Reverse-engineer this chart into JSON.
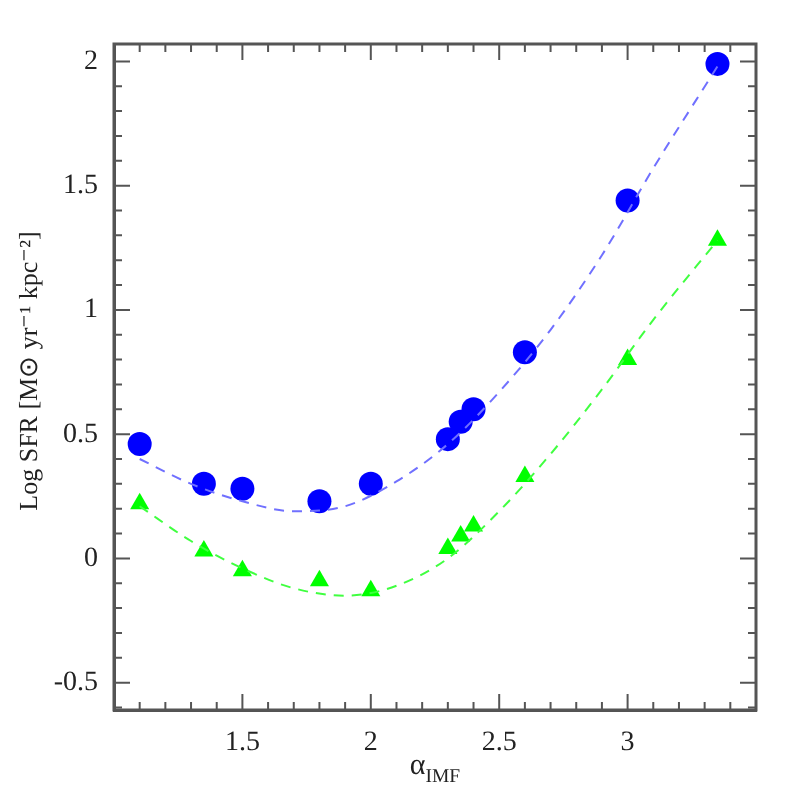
{
  "chart_data": {
    "type": "scatter",
    "xlabel": "α$_{IMF}$",
    "ylabel": "Log SFR [M⊙ yr⁻¹ kpc⁻²]",
    "xlim": [
      1.0,
      3.5
    ],
    "ylim": [
      -0.61,
      2.07
    ],
    "xticks": [
      {
        "value": 1.1,
        "label": null
      },
      {
        "value": 1.2,
        "label": null
      },
      {
        "value": 1.3,
        "label": null
      },
      {
        "value": 1.4,
        "label": null
      },
      1.5,
      {
        "value": 1.6,
        "label": null
      },
      {
        "value": 1.7,
        "label": null
      },
      {
        "value": 1.8,
        "label": null
      },
      {
        "value": 1.9,
        "label": null
      },
      2,
      {
        "value": 2.1,
        "label": null
      },
      {
        "value": 2.2,
        "label": null
      },
      {
        "value": 2.3,
        "label": null
      },
      {
        "value": 2.4,
        "label": null
      },
      2.5,
      {
        "value": 2.6,
        "label": null
      },
      {
        "value": 2.7,
        "label": null
      },
      {
        "value": 2.8,
        "label": null
      },
      {
        "value": 2.9,
        "label": null
      },
      3,
      {
        "value": 3.1,
        "label": null
      },
      {
        "value": 3.2,
        "label": null
      },
      {
        "value": 3.3,
        "label": null
      },
      {
        "value": 3.4,
        "label": null
      }
    ],
    "yticks": [
      {
        "value": -0.6,
        "label": null
      },
      -0.5,
      {
        "value": -0.4,
        "label": null
      },
      {
        "value": -0.3,
        "label": null
      },
      {
        "value": -0.2,
        "label": null
      },
      {
        "value": -0.1,
        "label": null
      },
      0,
      {
        "value": 0.1,
        "label": null
      },
      {
        "value": 0.2,
        "label": null
      },
      {
        "value": 0.3,
        "label": null
      },
      {
        "value": 0.4,
        "label": null
      },
      0.5,
      {
        "value": 0.6,
        "label": null
      },
      {
        "value": 0.7,
        "label": null
      },
      {
        "value": 0.8,
        "label": null
      },
      {
        "value": 0.9,
        "label": null
      },
      1,
      {
        "value": 1.1,
        "label": null
      },
      {
        "value": 1.2,
        "label": null
      },
      {
        "value": 1.3,
        "label": null
      },
      {
        "value": 1.4,
        "label": null
      },
      1.5,
      {
        "value": 1.6,
        "label": null
      },
      {
        "value": 1.7,
        "label": null
      },
      {
        "value": 1.8,
        "label": null
      },
      {
        "value": 1.9,
        "label": null
      },
      2
    ],
    "grid": false,
    "legend": false,
    "series": [
      {
        "type": "line",
        "color": "#7070ff",
        "line_style": "dashed",
        "marker": "none",
        "x": [
          1.1,
          1.3,
          1.5,
          1.7,
          1.9,
          2.1,
          2.3,
          2.5,
          2.7,
          2.9,
          3.1,
          3.35
        ],
        "values": [
          0.4,
          0.3,
          0.23,
          0.19,
          0.21,
          0.31,
          0.46,
          0.67,
          0.92,
          1.22,
          1.57,
          1.98
        ]
      },
      {
        "type": "line",
        "color": "#40ff40",
        "line_style": "dashed",
        "marker": "none",
        "x": [
          1.1,
          1.3,
          1.5,
          1.7,
          1.9,
          2.1,
          2.3,
          2.5,
          2.7,
          2.9,
          3.1,
          3.35
        ],
        "values": [
          0.21,
          0.07,
          -0.04,
          -0.12,
          -0.15,
          -0.11,
          0.0,
          0.19,
          0.42,
          0.68,
          0.96,
          1.28
        ]
      },
      {
        "color": "#0000ff",
        "marker": "circle",
        "x": [
          1.1,
          1.35,
          1.5,
          1.8,
          2.0,
          2.3,
          2.35,
          2.4,
          2.6,
          3.0,
          3.35
        ],
        "values": [
          0.46,
          0.3,
          0.28,
          0.23,
          0.3,
          0.48,
          0.55,
          0.6,
          0.83,
          1.44,
          1.99
        ]
      },
      {
        "color": "#00ff00",
        "marker": "triangle",
        "x": [
          1.1,
          1.35,
          1.5,
          1.8,
          2.0,
          2.3,
          2.35,
          2.4,
          2.6,
          3.0,
          3.35
        ],
        "values": [
          0.22,
          0.03,
          -0.05,
          -0.09,
          -0.13,
          0.04,
          0.09,
          0.13,
          0.33,
          0.8,
          1.28
        ]
      }
    ]
  }
}
